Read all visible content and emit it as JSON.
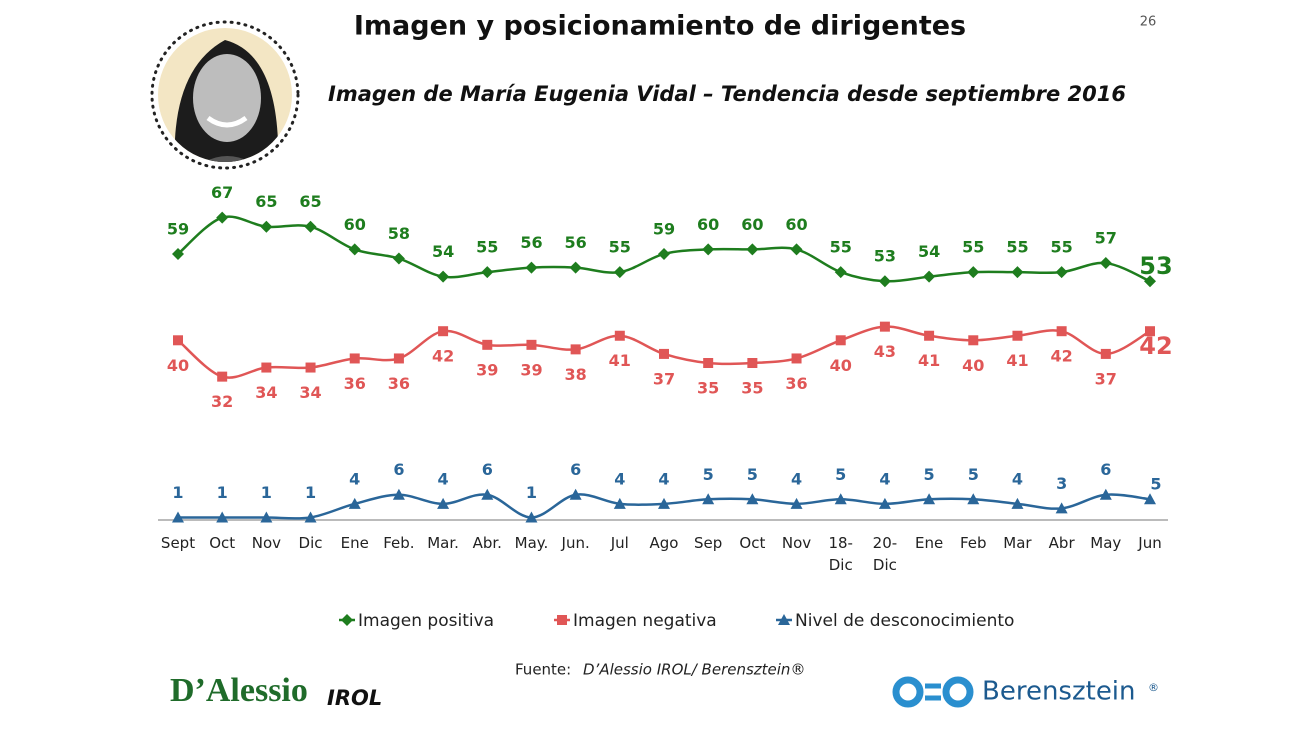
{
  "page_number": "26",
  "chart_data": {
    "type": "line",
    "title": "Imagen y posicionamiento de dirigentes",
    "subtitle": "Imagen de María Eugenia Vidal – Tendencia desde septiembre 2016",
    "categories": [
      "Sept",
      "Oct",
      "Nov",
      "Dic",
      "Ene",
      "Feb.",
      "Mar.",
      "Abr.",
      "May.",
      "Jun.",
      "Jul",
      "Ago",
      "Sep",
      "Oct",
      "Nov",
      "18-\nDic",
      "20-\nDic",
      "Ene",
      "Feb",
      "Mar",
      "Abr",
      "May",
      "Jun"
    ],
    "series": [
      {
        "name": "Imagen positiva",
        "color": "#1e7d1e",
        "marker": "diamond",
        "values": [
          59,
          67,
          65,
          65,
          60,
          58,
          54,
          55,
          56,
          56,
          55,
          59,
          60,
          60,
          60,
          55,
          53,
          54,
          55,
          55,
          55,
          57,
          53
        ]
      },
      {
        "name": "Imagen negativa",
        "color": "#e05656",
        "marker": "square",
        "values": [
          40,
          32,
          34,
          34,
          36,
          36,
          42,
          39,
          39,
          38,
          41,
          37,
          35,
          35,
          36,
          40,
          43,
          41,
          40,
          41,
          42,
          37,
          42
        ]
      },
      {
        "name": "Nivel de desconocimiento",
        "color": "#2a6699",
        "marker": "triangle",
        "values": [
          1,
          1,
          1,
          1,
          4,
          6,
          4,
          6,
          1,
          6,
          4,
          4,
          5,
          5,
          4,
          5,
          4,
          5,
          5,
          4,
          3,
          6,
          5
        ]
      }
    ],
    "ylim": [
      0,
      70
    ],
    "legend": "bottom"
  },
  "source": {
    "label": "Fuente:",
    "text": "D’Alessio IROL/ Berensztein®"
  },
  "logos": {
    "left_main": "D’Alessio",
    "left_sub": "IROL",
    "right": "Berensztein",
    "right_mark": "®"
  }
}
